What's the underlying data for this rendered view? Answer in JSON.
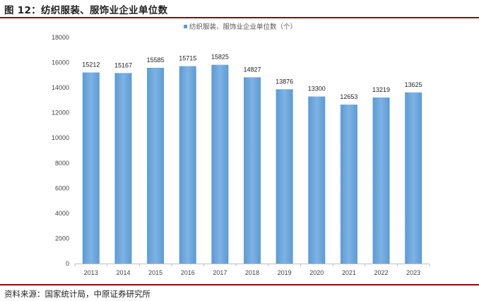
{
  "figure": {
    "title": "图 12：纺织服装、服饰业企业单位数",
    "source": "资料来源：国家统计局，中原证券研究所"
  },
  "colors": {
    "bar": "#5b9bd5",
    "bar_light": "#7eb2e3",
    "rule": "#8a0b0b",
    "axis": "#bfbfbf"
  },
  "chart_data": {
    "type": "bar",
    "title": "",
    "xlabel": "",
    "ylabel": "",
    "legend": "纺织服装、服饰业企业单位数（个）",
    "legend_position": "top",
    "categories": [
      "2013",
      "2014",
      "2015",
      "2016",
      "2017",
      "2018",
      "2019",
      "2020",
      "2021",
      "2022",
      "2023"
    ],
    "series": [
      {
        "name": "纺织服装、服饰业企业单位数（个）",
        "values": [
          15212,
          15167,
          15585,
          15715,
          15825,
          14827,
          13876,
          13300,
          12653,
          13219,
          13625
        ]
      }
    ],
    "ylim": [
      0,
      18000
    ],
    "yticks": [
      0,
      2000,
      4000,
      6000,
      8000,
      10000,
      12000,
      14000,
      16000,
      18000
    ],
    "grid": false
  }
}
